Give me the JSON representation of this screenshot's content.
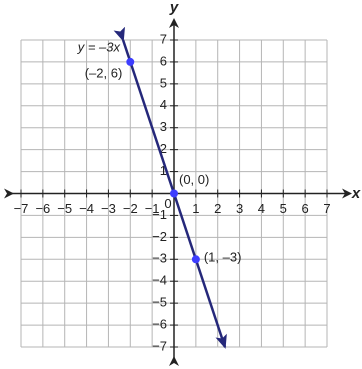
{
  "chart_data": {
    "type": "line",
    "xlabel": "x",
    "ylabel": "y",
    "annotation": "y = –3x",
    "xlim": [
      -7,
      7
    ],
    "ylim": [
      -7,
      7
    ],
    "xticks": [
      {
        "value": -7,
        "label": "−7"
      },
      {
        "value": -6,
        "label": "−6"
      },
      {
        "value": -5,
        "label": "−5"
      },
      {
        "value": -4,
        "label": "−4"
      },
      {
        "value": -3,
        "label": "−3"
      },
      {
        "value": -2,
        "label": "−2"
      },
      {
        "value": -1,
        "label": "−1"
      },
      0,
      1,
      2,
      3,
      4,
      5,
      6,
      7
    ],
    "yticks": [
      {
        "value": -7,
        "label": "−7"
      },
      {
        "value": -6,
        "label": "−6"
      },
      {
        "value": -5,
        "label": "−5"
      },
      {
        "value": -4,
        "label": "−4"
      },
      {
        "value": -3,
        "label": "−3"
      },
      {
        "value": -2,
        "label": "−2"
      },
      {
        "value": -1,
        "label": "−1"
      },
      1,
      2,
      3,
      4,
      5,
      6,
      7
    ],
    "grid": true,
    "series": [
      {
        "color": "#25287a",
        "x": [
          -2.33,
          2.33
        ],
        "y": [
          7,
          -7
        ]
      },
      {
        "color": "#3d3dff",
        "x": [
          -2,
          0,
          1
        ],
        "y": [
          6,
          0,
          -3
        ],
        "labels": [
          "(–2, 6)",
          "(0, 0)",
          "(1, –3)"
        ]
      }
    ]
  }
}
